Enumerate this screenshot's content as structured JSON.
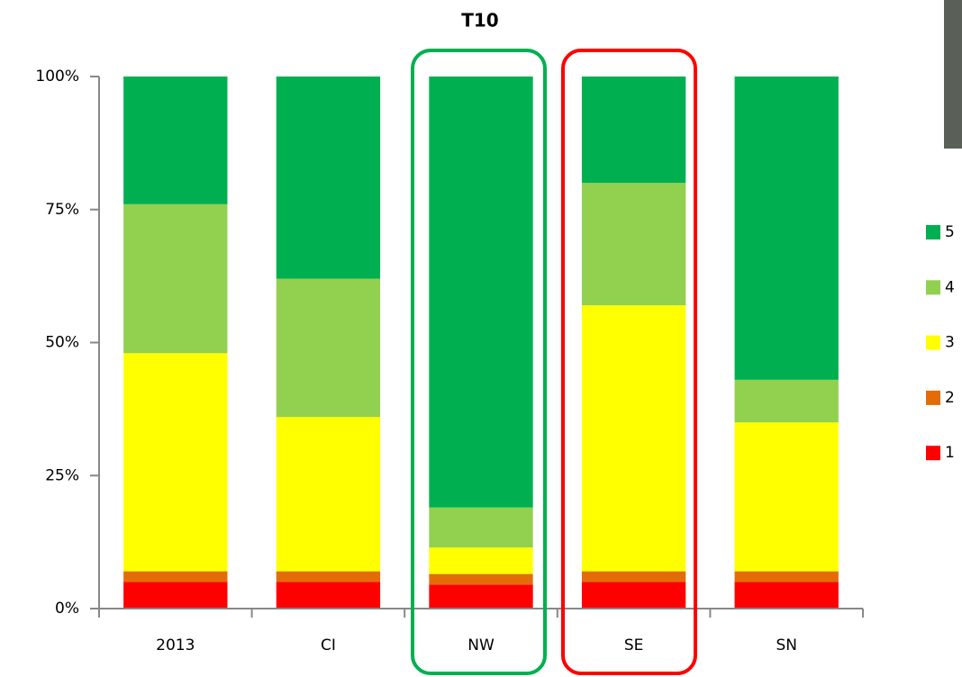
{
  "chart_data": {
    "type": "stacked_bar",
    "title": "T10",
    "categories": [
      "2013",
      "CI",
      "NW",
      "SE",
      "SN"
    ],
    "series": [
      {
        "name": "1",
        "color": "#ff0000",
        "values": [
          5,
          5,
          4.5,
          5,
          5
        ]
      },
      {
        "name": "2",
        "color": "#e36c09",
        "values": [
          2,
          2,
          2,
          2,
          2
        ]
      },
      {
        "name": "3",
        "color": "#ffff00",
        "values": [
          41,
          29,
          5,
          50,
          28
        ]
      },
      {
        "name": "4",
        "color": "#92d050",
        "values": [
          28,
          26,
          7.5,
          23,
          8
        ]
      },
      {
        "name": "5",
        "color": "#00b050",
        "values": [
          24,
          38,
          81,
          20,
          57
        ]
      }
    ],
    "ylim": [
      0,
      100
    ],
    "yticks": [
      {
        "value": 0,
        "label": "0%"
      },
      {
        "value": 25,
        "label": "25%"
      },
      {
        "value": 50,
        "label": "50%"
      },
      {
        "value": 75,
        "label": "75%"
      },
      {
        "value": 100,
        "label": "100%"
      }
    ],
    "legend": "right"
  }
}
